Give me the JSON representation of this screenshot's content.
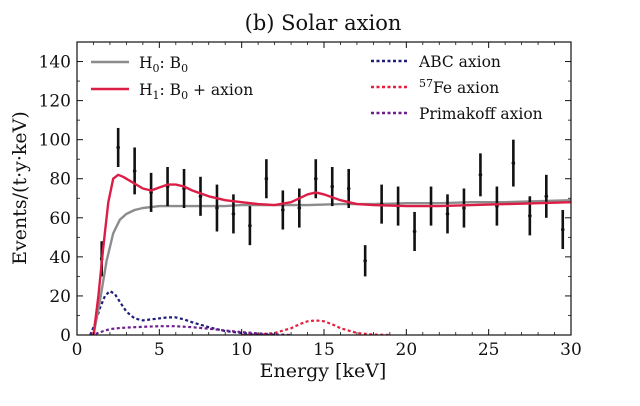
{
  "chart_data": {
    "type": "line",
    "title": "(b) Solar axion",
    "xlabel": "Energy [keV]",
    "ylabel": "Events/(t·y·keV)",
    "xlim": [
      0,
      30
    ],
    "ylim": [
      0,
      150
    ],
    "xticks": [
      0,
      5,
      10,
      15,
      20,
      25,
      30
    ],
    "yticks": [
      0,
      20,
      40,
      60,
      80,
      100,
      120,
      140
    ],
    "grid": false,
    "legend": {
      "left_entries": [
        {
          "id": "h0",
          "base": "H",
          "sub": "0",
          "rest": ": B",
          "rest_sub": "0",
          "tail": "",
          "color": "#8c8c8c",
          "style": "solid"
        },
        {
          "id": "h1",
          "base": "H",
          "sub": "1",
          "rest": ": B",
          "rest_sub": "0",
          "tail": " + axion",
          "color": "#dc1e46",
          "style": "solid"
        }
      ],
      "right_entries": [
        {
          "id": "abc",
          "pre": "",
          "label": "ABC axion",
          "color": "#1e1e78",
          "style": "dotted"
        },
        {
          "id": "fe57",
          "pre": "57",
          "label": "Fe axion",
          "color": "#e61e3c",
          "style": "dotted"
        },
        {
          "id": "primakoff",
          "pre": "",
          "label": "Primakoff axion",
          "color": "#6e1e8c",
          "style": "dotted"
        }
      ]
    },
    "series": [
      {
        "name": "H0: B0",
        "color": "#8c8c8c",
        "width": 2.4,
        "dash": "",
        "x": [
          1.0,
          1.4,
          1.8,
          2.2,
          2.6,
          3.0,
          3.5,
          4.0,
          4.5,
          5,
          6,
          7,
          8,
          9,
          10,
          12,
          14,
          16,
          18,
          20,
          22,
          24,
          26,
          28,
          30
        ],
        "y": [
          0,
          18,
          38,
          52,
          59,
          62,
          64,
          65,
          65.5,
          66,
          66,
          66,
          66,
          66,
          66.5,
          66.5,
          66.5,
          67,
          67,
          67.5,
          67.5,
          68,
          68,
          68.5,
          69
        ]
      },
      {
        "name": "H1: B0 + axion",
        "color": "#dc1e46",
        "width": 2.4,
        "dash": "",
        "x": [
          1.0,
          1.3,
          1.6,
          1.9,
          2.2,
          2.5,
          2.8,
          3.2,
          3.6,
          4.0,
          4.5,
          5.0,
          5.5,
          6.0,
          6.5,
          7.0,
          8,
          9,
          10,
          11,
          12,
          13,
          14,
          14.5,
          15,
          16,
          17,
          18,
          20,
          22,
          24,
          26,
          28,
          30
        ],
        "y": [
          0,
          20,
          45,
          68,
          80,
          82,
          81,
          79,
          77,
          75,
          74,
          75.5,
          77,
          77,
          76,
          74,
          71,
          69,
          68,
          67,
          66.5,
          68,
          72,
          73,
          72,
          69,
          67,
          66.5,
          66,
          66,
          66.5,
          67,
          67.5,
          68
        ]
      },
      {
        "name": "ABC axion",
        "color": "#1e1e78",
        "width": 2.2,
        "dash": "3,2.5",
        "x": [
          0.8,
          1.1,
          1.4,
          1.7,
          2.0,
          2.3,
          2.6,
          3.0,
          3.5,
          4.0,
          4.5,
          5.0,
          5.5,
          6.0,
          6.5,
          7.0,
          8,
          9,
          10,
          11,
          12
        ],
        "y": [
          0,
          6,
          14,
          20,
          22.5,
          21,
          17,
          12,
          8.5,
          7.5,
          8,
          8.5,
          9,
          9,
          8,
          6.5,
          4,
          2,
          1,
          0.3,
          0
        ]
      },
      {
        "name": "57Fe axion",
        "color": "#e61e3c",
        "width": 2.2,
        "dash": "3,2.5",
        "x": [
          10,
          11,
          12,
          13,
          13.5,
          14,
          14.5,
          15,
          15.5,
          16,
          17,
          18,
          19
        ],
        "y": [
          0,
          0.2,
          1,
          3.5,
          5.5,
          7,
          7.5,
          7,
          5.5,
          3.5,
          1,
          0.2,
          0
        ]
      },
      {
        "name": "Primakoff axion",
        "color": "#6e1e8c",
        "width": 2.2,
        "dash": "3,2.5",
        "x": [
          0.8,
          1.2,
          1.6,
          2.0,
          2.5,
          3.0,
          3.5,
          4.0,
          5.0,
          6.0,
          7.0,
          8.0,
          9,
          10,
          11,
          12,
          13
        ],
        "y": [
          0,
          0.8,
          2,
          3,
          3.5,
          3.8,
          4,
          4.2,
          4.5,
          4.5,
          4,
          3.2,
          2.3,
          1.5,
          0.8,
          0.3,
          0
        ]
      }
    ],
    "data_points": [
      {
        "x": 1.5,
        "y": 39,
        "err": 9
      },
      {
        "x": 2.5,
        "y": 96,
        "err": 10
      },
      {
        "x": 3.5,
        "y": 84,
        "err": 12
      },
      {
        "x": 4.5,
        "y": 73,
        "err": 10
      },
      {
        "x": 5.5,
        "y": 76,
        "err": 10
      },
      {
        "x": 6.5,
        "y": 75,
        "err": 10
      },
      {
        "x": 7.5,
        "y": 71,
        "err": 10
      },
      {
        "x": 8.5,
        "y": 65,
        "err": 12
      },
      {
        "x": 9.5,
        "y": 62,
        "err": 10
      },
      {
        "x": 10.5,
        "y": 56,
        "err": 10
      },
      {
        "x": 11.5,
        "y": 80,
        "err": 10
      },
      {
        "x": 12.5,
        "y": 64,
        "err": 10
      },
      {
        "x": 13.5,
        "y": 65,
        "err": 10
      },
      {
        "x": 14.5,
        "y": 80,
        "err": 10
      },
      {
        "x": 15.5,
        "y": 76,
        "err": 10
      },
      {
        "x": 16.5,
        "y": 75,
        "err": 10
      },
      {
        "x": 17.5,
        "y": 38,
        "err": 8
      },
      {
        "x": 18.5,
        "y": 67,
        "err": 10
      },
      {
        "x": 19.5,
        "y": 66,
        "err": 10
      },
      {
        "x": 20.5,
        "y": 53,
        "err": 10
      },
      {
        "x": 21.5,
        "y": 66,
        "err": 10
      },
      {
        "x": 22.5,
        "y": 62,
        "err": 10
      },
      {
        "x": 23.5,
        "y": 65,
        "err": 10
      },
      {
        "x": 24.5,
        "y": 82,
        "err": 11
      },
      {
        "x": 25.5,
        "y": 66,
        "err": 10
      },
      {
        "x": 26.5,
        "y": 88,
        "err": 12
      },
      {
        "x": 27.5,
        "y": 61,
        "err": 10
      },
      {
        "x": 28.5,
        "y": 71,
        "err": 11
      },
      {
        "x": 29.5,
        "y": 54,
        "err": 10
      }
    ]
  }
}
